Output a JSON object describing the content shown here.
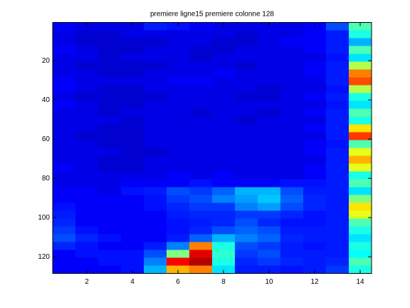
{
  "chart_data": {
    "type": "heatmap",
    "title": "premiere ligne15 premiere colonne 128",
    "x": [
      1,
      2,
      3,
      4,
      5,
      6,
      7,
      8,
      9,
      10,
      11,
      12,
      13,
      14
    ],
    "y_edges": [
      0.5,
      4.5,
      8.5,
      12.5,
      16.5,
      20.5,
      24.5,
      28.5,
      32.5,
      36.5,
      40.5,
      44.5,
      48.5,
      52.5,
      56.5,
      60.5,
      64.5,
      68.5,
      72.5,
      76.5,
      80.5,
      84.5,
      88.5,
      92.5,
      96.5,
      100.5,
      104.5,
      108.5,
      112.5,
      116.5,
      120.5,
      124.5,
      128.5
    ],
    "xlim": [
      0.5,
      14.5
    ],
    "ylim": [
      0.5,
      128.5
    ],
    "y_reversed": true,
    "xticks": [
      2,
      4,
      6,
      8,
      10,
      12,
      14
    ],
    "yticks": [
      20,
      40,
      60,
      80,
      100,
      120
    ],
    "clim": [
      0,
      1
    ],
    "colormap": "jet",
    "z": [
      [
        0.12,
        0.1,
        0.1,
        0.1,
        0.15,
        0.14,
        0.12,
        0.1,
        0.1,
        0.1,
        0.1,
        0.12,
        0.2,
        0.45
      ],
      [
        0.1,
        0.08,
        0.08,
        0.1,
        0.1,
        0.1,
        0.1,
        0.1,
        0.08,
        0.1,
        0.1,
        0.12,
        0.15,
        0.4
      ],
      [
        0.1,
        0.08,
        0.08,
        0.08,
        0.08,
        0.1,
        0.1,
        0.08,
        0.08,
        0.1,
        0.12,
        0.12,
        0.15,
        0.3
      ],
      [
        0.12,
        0.1,
        0.08,
        0.08,
        0.1,
        0.1,
        0.08,
        0.08,
        0.1,
        0.1,
        0.1,
        0.12,
        0.15,
        0.45
      ],
      [
        0.1,
        0.1,
        0.08,
        0.1,
        0.1,
        0.1,
        0.08,
        0.1,
        0.1,
        0.1,
        0.1,
        0.1,
        0.14,
        0.35
      ],
      [
        0.1,
        0.08,
        0.08,
        0.08,
        0.08,
        0.1,
        0.1,
        0.1,
        0.08,
        0.1,
        0.1,
        0.12,
        0.15,
        0.55
      ],
      [
        0.1,
        0.1,
        0.08,
        0.08,
        0.1,
        0.1,
        0.1,
        0.12,
        0.1,
        0.1,
        0.1,
        0.12,
        0.15,
        0.75
      ],
      [
        0.12,
        0.1,
        0.1,
        0.1,
        0.1,
        0.12,
        0.12,
        0.1,
        0.1,
        0.1,
        0.1,
        0.1,
        0.15,
        0.8
      ],
      [
        0.12,
        0.1,
        0.08,
        0.08,
        0.1,
        0.1,
        0.1,
        0.1,
        0.1,
        0.08,
        0.1,
        0.1,
        0.14,
        0.55
      ],
      [
        0.1,
        0.08,
        0.08,
        0.08,
        0.08,
        0.1,
        0.1,
        0.1,
        0.08,
        0.08,
        0.1,
        0.12,
        0.15,
        0.4
      ],
      [
        0.12,
        0.1,
        0.08,
        0.08,
        0.1,
        0.1,
        0.1,
        0.1,
        0.1,
        0.1,
        0.1,
        0.1,
        0.14,
        0.35
      ],
      [
        0.1,
        0.1,
        0.08,
        0.1,
        0.1,
        0.1,
        0.08,
        0.1,
        0.1,
        0.08,
        0.1,
        0.12,
        0.15,
        0.45
      ],
      [
        0.1,
        0.1,
        0.1,
        0.08,
        0.1,
        0.1,
        0.1,
        0.1,
        0.08,
        0.1,
        0.1,
        0.1,
        0.15,
        0.4
      ],
      [
        0.1,
        0.1,
        0.08,
        0.08,
        0.1,
        0.1,
        0.1,
        0.1,
        0.1,
        0.1,
        0.1,
        0.12,
        0.15,
        0.65
      ],
      [
        0.1,
        0.08,
        0.08,
        0.08,
        0.1,
        0.1,
        0.1,
        0.1,
        0.1,
        0.1,
        0.1,
        0.1,
        0.15,
        0.82
      ],
      [
        0.1,
        0.1,
        0.08,
        0.08,
        0.1,
        0.1,
        0.1,
        0.1,
        0.1,
        0.1,
        0.1,
        0.12,
        0.14,
        0.45
      ],
      [
        0.1,
        0.1,
        0.1,
        0.08,
        0.08,
        0.1,
        0.1,
        0.1,
        0.1,
        0.1,
        0.1,
        0.12,
        0.15,
        0.6
      ],
      [
        0.1,
        0.1,
        0.08,
        0.08,
        0.1,
        0.1,
        0.1,
        0.1,
        0.1,
        0.1,
        0.1,
        0.1,
        0.15,
        0.7
      ],
      [
        0.12,
        0.1,
        0.08,
        0.08,
        0.1,
        0.1,
        0.1,
        0.1,
        0.1,
        0.1,
        0.1,
        0.12,
        0.15,
        0.6
      ],
      [
        0.1,
        0.1,
        0.1,
        0.1,
        0.1,
        0.12,
        0.1,
        0.12,
        0.1,
        0.1,
        0.1,
        0.12,
        0.15,
        0.4
      ],
      [
        0.1,
        0.1,
        0.1,
        0.12,
        0.12,
        0.12,
        0.14,
        0.12,
        0.12,
        0.12,
        0.14,
        0.14,
        0.15,
        0.45
      ],
      [
        0.12,
        0.12,
        0.1,
        0.14,
        0.15,
        0.2,
        0.18,
        0.22,
        0.3,
        0.3,
        0.2,
        0.15,
        0.15,
        0.35
      ],
      [
        0.12,
        0.12,
        0.12,
        0.12,
        0.14,
        0.18,
        0.2,
        0.25,
        0.28,
        0.32,
        0.22,
        0.16,
        0.15,
        0.5
      ],
      [
        0.14,
        0.12,
        0.12,
        0.12,
        0.14,
        0.16,
        0.18,
        0.18,
        0.25,
        0.28,
        0.2,
        0.16,
        0.15,
        0.65
      ],
      [
        0.15,
        0.12,
        0.12,
        0.12,
        0.12,
        0.15,
        0.16,
        0.16,
        0.18,
        0.18,
        0.16,
        0.14,
        0.15,
        0.6
      ],
      [
        0.16,
        0.12,
        0.12,
        0.12,
        0.12,
        0.14,
        0.15,
        0.16,
        0.2,
        0.16,
        0.14,
        0.14,
        0.15,
        0.45
      ],
      [
        0.18,
        0.14,
        0.12,
        0.12,
        0.12,
        0.14,
        0.16,
        0.2,
        0.22,
        0.2,
        0.15,
        0.15,
        0.15,
        0.4
      ],
      [
        0.2,
        0.16,
        0.14,
        0.12,
        0.12,
        0.15,
        0.22,
        0.3,
        0.25,
        0.22,
        0.16,
        0.15,
        0.15,
        0.35
      ],
      [
        0.16,
        0.14,
        0.12,
        0.12,
        0.15,
        0.25,
        0.75,
        0.4,
        0.2,
        0.18,
        0.15,
        0.14,
        0.15,
        0.4
      ],
      [
        0.12,
        0.14,
        0.14,
        0.14,
        0.2,
        0.5,
        0.9,
        0.42,
        0.18,
        0.2,
        0.15,
        0.15,
        0.15,
        0.38
      ],
      [
        0.12,
        0.12,
        0.14,
        0.14,
        0.25,
        0.88,
        0.95,
        0.4,
        0.16,
        0.18,
        0.16,
        0.15,
        0.16,
        0.45
      ],
      [
        0.12,
        0.12,
        0.12,
        0.14,
        0.3,
        0.7,
        0.75,
        0.35,
        0.15,
        0.15,
        0.14,
        0.15,
        0.18,
        0.4
      ]
    ]
  }
}
